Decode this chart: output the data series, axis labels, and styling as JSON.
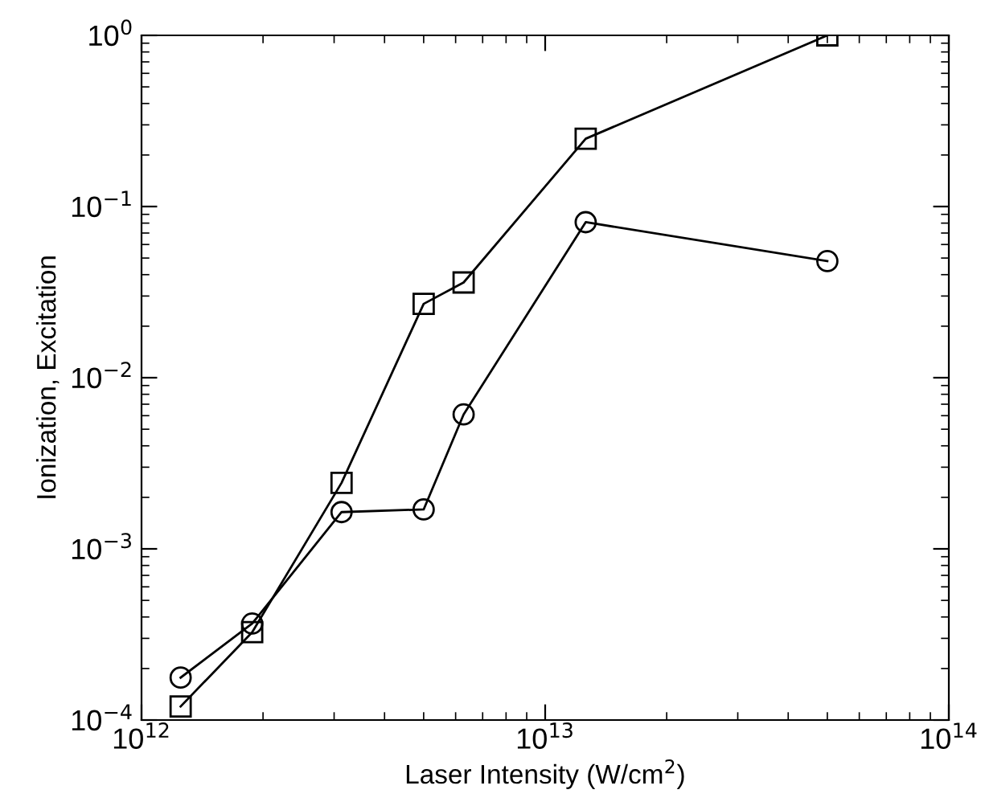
{
  "chart_data": {
    "type": "line",
    "xlabel": "Laser Intensity (W/cm$^{2}$)",
    "ylabel": "Ionization, Excitation",
    "log": "xy",
    "grid": false,
    "line_style": "solid",
    "xlim": [
      1000000000000.0,
      100000000000000.0
    ],
    "ylim": [
      0.0001,
      1
    ],
    "xticks": [
      {
        "value": 1000000000000.0,
        "label": "10$^{12}$"
      },
      {
        "value": 10000000000000.0,
        "label": "10$^{13}$"
      },
      {
        "value": 100000000000000.0,
        "label": "10$^{14}$"
      }
    ],
    "yticks": [
      {
        "value": 0.0001,
        "label": "10$^{−4}$"
      },
      {
        "value": 0.001,
        "label": "10$^{−3}$"
      },
      {
        "value": 0.01,
        "label": "10$^{−2}$"
      },
      {
        "value": 0.1,
        "label": "10$^{−1}$"
      },
      {
        "value": 1,
        "label": "10$^{0}$"
      }
    ],
    "x": [
      1250000000000.0,
      1880000000000.0,
      3130000000000.0,
      5000000000000.0,
      6280000000000.0,
      12600000000000.0,
      50000000000000.0
    ],
    "series": [
      {
        "color": "#000000",
        "marker": "square",
        "values": [
          0.00012,
          0.000326,
          0.00243,
          0.027,
          0.036,
          0.249,
          1.0
        ]
      },
      {
        "color": "#000000",
        "marker": "circle",
        "values": [
          0.000177,
          0.000366,
          0.00164,
          0.0017,
          0.0061,
          0.081,
          0.048
        ]
      }
    ]
  }
}
